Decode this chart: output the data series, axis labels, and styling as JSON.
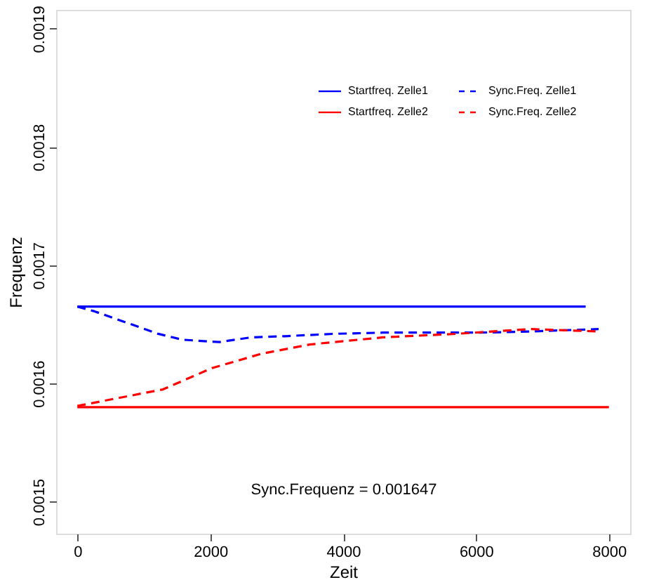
{
  "chart_data": {
    "type": "line",
    "xlabel": "Zeit",
    "ylabel": "Frequenz",
    "xlim": [
      -320,
      8320
    ],
    "ylim": [
      0.001473,
      0.001916
    ],
    "xticks": [
      0,
      2000,
      4000,
      6000,
      8000
    ],
    "yticks": [
      0.0015,
      0.0016,
      0.0017,
      0.0018,
      0.0019
    ],
    "grid": false,
    "legend": "top right",
    "marker": "none",
    "series": [
      {
        "name": "Startfreq. Zelle1",
        "color": "#0000ff",
        "line_style": "solid",
        "x": [
          0,
          7650
        ],
        "values": [
          0.001665,
          0.001665
        ]
      },
      {
        "name": "Sync.Freq. Zelle1",
        "color": "#0000ff",
        "line_style": "dashed",
        "x": [
          0,
          258,
          1215,
          1584,
          2136,
          2615,
          3131,
          3867,
          4604,
          6077,
          6814,
          7845
        ],
        "values": [
          0.001665,
          0.001661,
          0.001642,
          0.001637,
          0.001635,
          0.001639,
          0.00164,
          0.001642,
          0.001643,
          0.001643,
          0.001644,
          0.001646
        ]
      },
      {
        "name": "Startfreq. Zelle2",
        "color": "#ff0000",
        "line_style": "solid",
        "x": [
          0,
          8000
        ],
        "values": [
          0.00158,
          0.00158
        ]
      },
      {
        "name": "Sync.Freq. Zelle2",
        "color": "#ff0000",
        "line_style": "dashed",
        "x": [
          0,
          552,
          1289,
          2026,
          2762,
          3499,
          4604,
          5709,
          6814,
          7845
        ],
        "values": [
          0.001581,
          0.001587,
          0.001595,
          0.001613,
          0.001625,
          0.001633,
          0.001639,
          0.001642,
          0.001646,
          0.001644
        ]
      }
    ],
    "annotations": [
      "Sync.Frequenz = 0.001647"
    ]
  }
}
